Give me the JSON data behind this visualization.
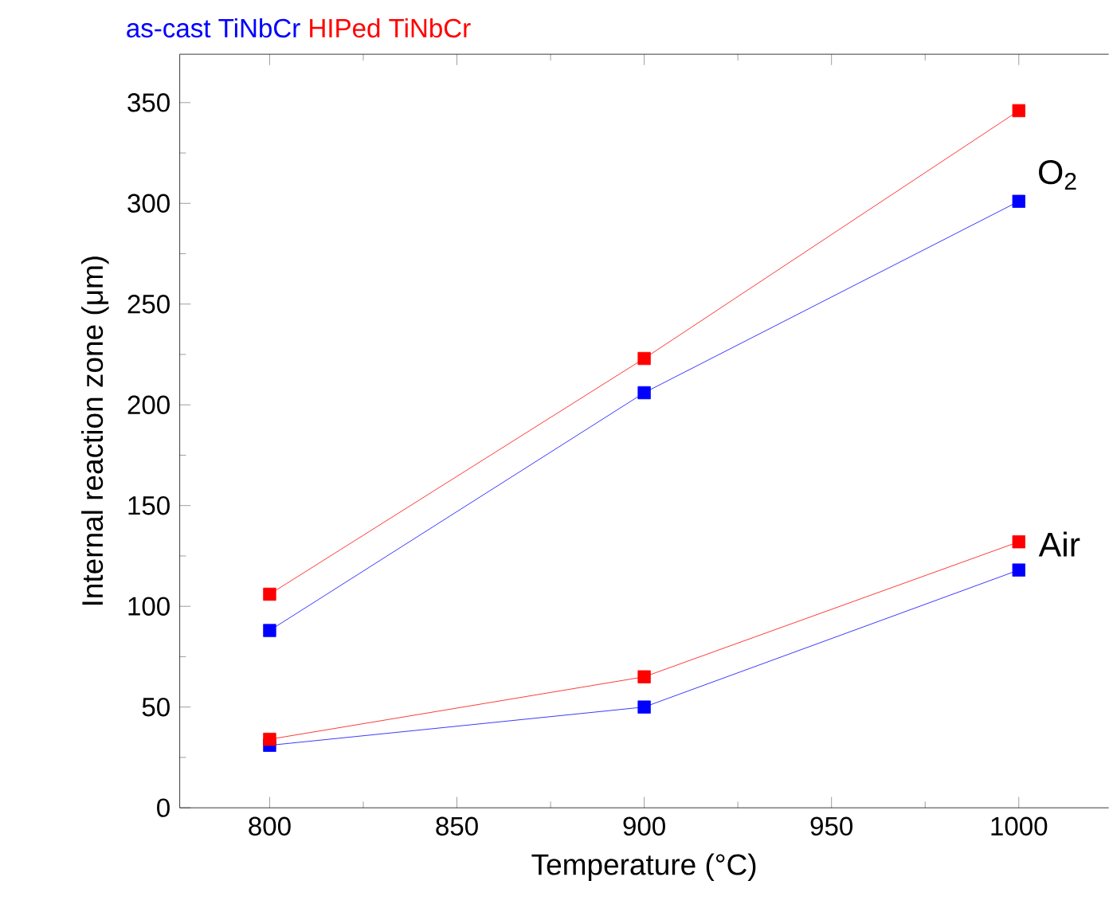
{
  "chart_data": {
    "type": "line",
    "xlabel": "Temperature (°C)",
    "ylabel": "Internal reaction zone (μm)",
    "x": [
      800,
      900,
      1000
    ],
    "series": [
      {
        "name": "as-cast TiNbCr",
        "color": "#0000ff",
        "values": [
          88,
          206,
          301
        ]
      },
      {
        "name": "HIPed TiNbCr",
        "color": "#ff0000",
        "values": [
          106,
          223,
          346
        ]
      },
      {
        "color": "#0000ff",
        "values": [
          31,
          50,
          118
        ]
      },
      {
        "color": "#ff0000",
        "values": [
          34,
          65,
          132
        ]
      }
    ],
    "annotations": [
      "O$_{2}$",
      "Air"
    ],
    "xlim": [
      776,
      1024
    ],
    "ylim": [
      0,
      374
    ],
    "xticks": [
      800,
      850,
      900,
      950,
      1000
    ],
    "yticks": [
      0,
      50,
      100,
      150,
      200,
      250,
      300,
      350
    ],
    "grid": false,
    "legend": "top left",
    "marker": "square",
    "line_style": "solid"
  }
}
